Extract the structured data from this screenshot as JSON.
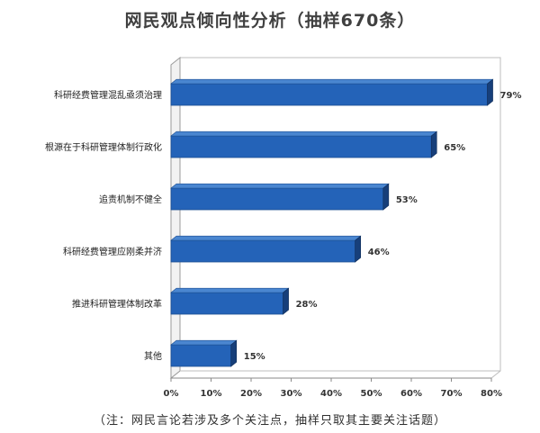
{
  "chart_data": {
    "type": "bar",
    "orientation": "horizontal",
    "title": "网民观点倾向性分析（抽样670条）",
    "note": "（注：网民言论若涉及多个关注点，抽样只取其主要关注话题）",
    "categories": [
      "科研经费管理混乱亟须治理",
      "根源在于科研管理体制行政化",
      "追责机制不健全",
      "科研经费管理应刚柔并济",
      "推进科研管理体制改革",
      "其他"
    ],
    "values": [
      79,
      65,
      53,
      46,
      28,
      15
    ],
    "value_labels": [
      "79%",
      "65%",
      "53%",
      "46%",
      "28%",
      "15%"
    ],
    "x_ticks": [
      "0%",
      "10%",
      "20%",
      "30%",
      "40%",
      "50%",
      "60%",
      "70%",
      "80%"
    ],
    "xlim": [
      0,
      80
    ],
    "grid": false,
    "bar_color": "#2463b8",
    "bar_side_color": "#173f7a",
    "bar_top_color": "#4a86d0"
  }
}
